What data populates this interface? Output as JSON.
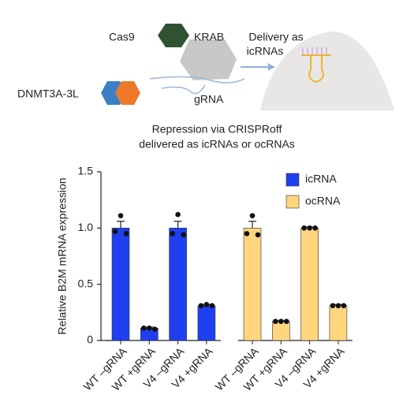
{
  "diagram": {
    "labels": {
      "cas9": "Cas9",
      "krab": "KRAB",
      "dnmt": "DNMT3A-3L",
      "grna": "gRNA",
      "delivery": [
        "Delivery as",
        "icRNAs"
      ]
    }
  },
  "chart_data": {
    "type": "bar",
    "title": [
      "Repression via CRISPRoff",
      "delivered as icRNAs or ocRNAs"
    ],
    "ylabel": "Relative B2M mRNA expression",
    "categories": [
      "WT –gRNA",
      "WT +gRNA",
      "V4 –gRNA",
      "V4 +gRNA"
    ],
    "series": [
      {
        "name": "icRNA",
        "color": "#1f3ff0",
        "values": [
          1.0,
          0.11,
          1.0,
          0.31
        ],
        "errors": [
          0.06,
          0.01,
          0.06,
          0.01
        ],
        "points": [
          [
            1.11,
            0.97,
            0.95
          ],
          [
            0.11,
            0.11,
            0.1
          ],
          [
            1.12,
            0.95,
            0.94
          ],
          [
            0.32,
            0.31,
            0.31
          ]
        ]
      },
      {
        "name": "ocRNA",
        "color": "#ffd57e",
        "values": [
          1.0,
          0.17,
          1.0,
          0.31
        ],
        "errors": [
          0.06,
          0.005,
          0.01,
          0.01
        ],
        "points": [
          [
            1.11,
            0.95,
            0.94
          ],
          [
            0.17,
            0.17,
            0.17
          ],
          [
            1.0,
            1.0,
            1.0
          ],
          [
            0.31,
            0.31,
            0.31
          ]
        ]
      }
    ],
    "ylim": [
      0,
      1.5
    ],
    "yticks": [
      0,
      {
        "value": 0.5,
        "label": "0.5"
      },
      {
        "value": 1.0,
        "label": "1.0"
      },
      1.5
    ],
    "legend": "upper right"
  }
}
